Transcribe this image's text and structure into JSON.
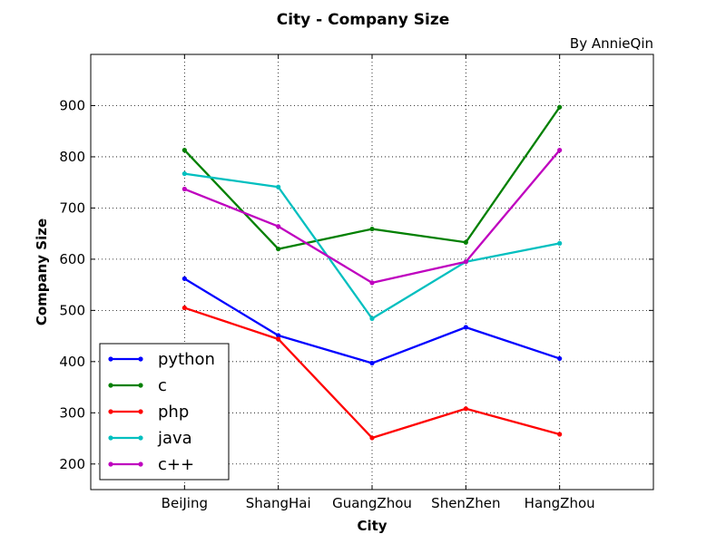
{
  "chart_data": {
    "type": "line",
    "title": "City - Company Size",
    "subtitle": "By AnnieQin",
    "xlabel": "City",
    "ylabel": "Company Size",
    "categories": [
      "BeiJing",
      "ShangHai",
      "GuangZhou",
      "ShenZhen",
      "HangZhou"
    ],
    "ylim": [
      150,
      1000
    ],
    "yticks": [
      200,
      300,
      400,
      500,
      600,
      700,
      800,
      900
    ],
    "grid": true,
    "legend_position": "lower-left",
    "series": [
      {
        "name": "python",
        "color": "#0000ff",
        "values": [
          562,
          451,
          397,
          467,
          406
        ]
      },
      {
        "name": "c",
        "color": "#008000",
        "values": [
          813,
          620,
          659,
          633,
          897
        ]
      },
      {
        "name": "php",
        "color": "#ff0000",
        "values": [
          505,
          444,
          251,
          308,
          258
        ]
      },
      {
        "name": "java",
        "color": "#00bfbf",
        "values": [
          767,
          741,
          484,
          595,
          631
        ]
      },
      {
        "name": "c++",
        "color": "#bf00bf",
        "values": [
          737,
          664,
          554,
          595,
          813
        ]
      }
    ]
  }
}
